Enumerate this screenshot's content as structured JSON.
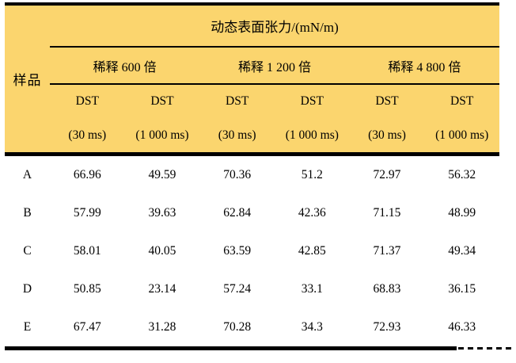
{
  "table": {
    "corner_header": "样品",
    "top_header": "动态表面张力/(mN/m)",
    "groups": [
      {
        "label": "稀释 600 倍"
      },
      {
        "label": "稀释 1 200 倍"
      },
      {
        "label": "稀释 4 800 倍"
      }
    ],
    "sub_headers": [
      {
        "line1": "DST",
        "line2": "(30 ms)"
      },
      {
        "line1": "DST",
        "line2": "(1 000 ms)"
      },
      {
        "line1": "DST",
        "line2": "(30 ms)"
      },
      {
        "line1": "DST",
        "line2": "(1 000 ms)"
      },
      {
        "line1": "DST",
        "line2": "(30 ms)"
      },
      {
        "line1": "DST",
        "line2": "(1 000 ms)"
      }
    ],
    "rows": [
      {
        "sample": "A",
        "values": [
          "66.96",
          "49.59",
          "70.36",
          "51.2",
          "72.97",
          "56.32"
        ]
      },
      {
        "sample": "B",
        "values": [
          "57.99",
          "39.63",
          "62.84",
          "42.36",
          "71.15",
          "48.99"
        ]
      },
      {
        "sample": "C",
        "values": [
          "58.01",
          "40.05",
          "63.59",
          "42.85",
          "71.37",
          "49.34"
        ]
      },
      {
        "sample": "D",
        "values": [
          "50.85",
          "23.14",
          "57.24",
          "33.1",
          "68.83",
          "36.15"
        ]
      },
      {
        "sample": "E",
        "values": [
          "67.47",
          "31.28",
          "70.28",
          "34.3",
          "72.93",
          "46.33"
        ]
      }
    ],
    "colors": {
      "header_bg": "#FBD56E",
      "rule": "#000000",
      "text": "#000000"
    }
  },
  "chart_data": {
    "type": "table",
    "title": "动态表面张力/(mN/m)",
    "row_header": "样品",
    "column_groups": [
      "稀释 600 倍",
      "稀释 1 200 倍",
      "稀释 4 800 倍"
    ],
    "columns": [
      "DST (30 ms)",
      "DST (1 000 ms)",
      "DST (30 ms)",
      "DST (1 000 ms)",
      "DST (30 ms)",
      "DST (1 000 ms)"
    ],
    "rows": [
      [
        "A",
        66.96,
        49.59,
        70.36,
        51.2,
        72.97,
        56.32
      ],
      [
        "B",
        57.99,
        39.63,
        62.84,
        42.36,
        71.15,
        48.99
      ],
      [
        "C",
        58.01,
        40.05,
        63.59,
        42.85,
        71.37,
        49.34
      ],
      [
        "D",
        50.85,
        23.14,
        57.24,
        33.1,
        68.83,
        36.15
      ],
      [
        "E",
        67.47,
        31.28,
        70.28,
        34.3,
        72.93,
        46.33
      ]
    ]
  }
}
